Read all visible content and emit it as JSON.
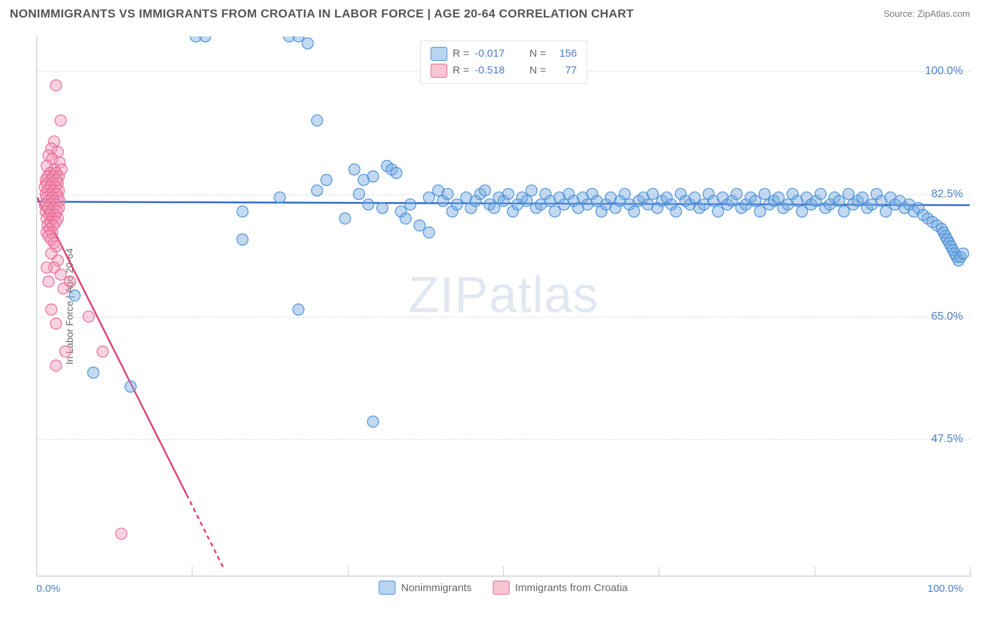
{
  "title": "NONIMMIGRANTS VS IMMIGRANTS FROM CROATIA IN LABOR FORCE | AGE 20-64 CORRELATION CHART",
  "source": "Source: ZipAtlas.com",
  "watermark": "ZIPatlas",
  "axes": {
    "y_title": "In Labor Force | Age 20-64",
    "x_min_label": "0.0%",
    "x_max_label": "100.0%",
    "xlim": [
      0,
      100
    ],
    "ylim": [
      28,
      105
    ],
    "y_ticks": [
      47.5,
      65.0,
      82.5,
      100.0
    ],
    "y_tick_labels": [
      "47.5%",
      "65.0%",
      "82.5%",
      "100.0%"
    ],
    "x_minor_ticks": [
      0,
      16.67,
      33.33,
      50,
      66.67,
      83.33,
      100
    ],
    "grid_color": "#dcdcdc",
    "axis_color": "#bfbfbf",
    "tick_label_color": "#4a7ec2",
    "tick_label_fontsize": 16
  },
  "legend_top": {
    "rows": [
      {
        "swatch_fill": "#b9d4f0",
        "swatch_stroke": "#4a90d9",
        "R_label": "R =",
        "R_value": "-0.017",
        "N_label": "N =",
        "N_value": "156"
      },
      {
        "swatch_fill": "#f7c4d2",
        "swatch_stroke": "#e86a96",
        "R_label": "R =",
        "R_value": "-0.518",
        "N_label": "N =",
        "N_value": "77"
      }
    ]
  },
  "legend_bottom": {
    "items": [
      {
        "swatch_fill": "#b9d4f0",
        "swatch_stroke": "#4a90d9",
        "label": "Nonimmigrants"
      },
      {
        "swatch_fill": "#f7c4d2",
        "swatch_stroke": "#e86a96",
        "label": "Immigants from Croatia"
      }
    ],
    "items_corrected": [
      {
        "swatch_fill": "#b9d4f0",
        "swatch_stroke": "#4a90d9",
        "label": "Nonimmigrants"
      },
      {
        "swatch_fill": "#f7c4d2",
        "swatch_stroke": "#e86a96",
        "label": "Immigrants from Croatia"
      }
    ]
  },
  "chart": {
    "type": "scatter",
    "background_color": "#ffffff",
    "series": [
      {
        "name": "Nonimmigrants",
        "marker_fill": "rgba(120,170,225,0.45)",
        "marker_stroke": "#4a90d9",
        "marker_r": 8,
        "trend": {
          "color": "#2f68c4",
          "width": 2.5,
          "y1": 81.4,
          "y2": 80.9,
          "x1": 0,
          "x2": 100,
          "dash_after_x": null
        },
        "points": [
          [
            17,
            105
          ],
          [
            18,
            105
          ],
          [
            27,
            105
          ],
          [
            28,
            105
          ],
          [
            29,
            104
          ],
          [
            30,
            93
          ],
          [
            4,
            68
          ],
          [
            10,
            55
          ],
          [
            6,
            57
          ],
          [
            22,
            76
          ],
          [
            28,
            66
          ],
          [
            36,
            50
          ],
          [
            42,
            82
          ],
          [
            22,
            80
          ],
          [
            26,
            82
          ],
          [
            30,
            83
          ],
          [
            31,
            84.5
          ],
          [
            33,
            79
          ],
          [
            34,
            86
          ],
          [
            34.5,
            82.5
          ],
          [
            35,
            84.5
          ],
          [
            35.5,
            81
          ],
          [
            36,
            85
          ],
          [
            37,
            80.5
          ],
          [
            37.5,
            86.5
          ],
          [
            38,
            86
          ],
          [
            38.5,
            85.5
          ],
          [
            39,
            80
          ],
          [
            39.5,
            79
          ],
          [
            40,
            81
          ],
          [
            41,
            78
          ],
          [
            42,
            77
          ],
          [
            43,
            83
          ],
          [
            43.5,
            81.5
          ],
          [
            44,
            82.5
          ],
          [
            44.5,
            80
          ],
          [
            45,
            81
          ],
          [
            46,
            82
          ],
          [
            46.5,
            80.5
          ],
          [
            47,
            81.5
          ],
          [
            47.5,
            82.5
          ],
          [
            48,
            83
          ],
          [
            48.5,
            81
          ],
          [
            49,
            80.5
          ],
          [
            49.5,
            82
          ],
          [
            50,
            81.5
          ],
          [
            50.5,
            82.5
          ],
          [
            51,
            80
          ],
          [
            51.5,
            81
          ],
          [
            52,
            82
          ],
          [
            52.5,
            81.5
          ],
          [
            53,
            83
          ],
          [
            53.5,
            80.5
          ],
          [
            54,
            81
          ],
          [
            54.5,
            82.5
          ],
          [
            55,
            81.5
          ],
          [
            55.5,
            80
          ],
          [
            56,
            82
          ],
          [
            56.5,
            81
          ],
          [
            57,
            82.5
          ],
          [
            57.5,
            81.5
          ],
          [
            58,
            80.5
          ],
          [
            58.5,
            82
          ],
          [
            59,
            81
          ],
          [
            59.5,
            82.5
          ],
          [
            60,
            81.5
          ],
          [
            60.5,
            80
          ],
          [
            61,
            81
          ],
          [
            61.5,
            82
          ],
          [
            62,
            80.5
          ],
          [
            62.5,
            81.5
          ],
          [
            63,
            82.5
          ],
          [
            63.5,
            81
          ],
          [
            64,
            80
          ],
          [
            64.5,
            81.5
          ],
          [
            65,
            82
          ],
          [
            65.5,
            81
          ],
          [
            66,
            82.5
          ],
          [
            66.5,
            80.5
          ],
          [
            67,
            81.5
          ],
          [
            67.5,
            82
          ],
          [
            68,
            81
          ],
          [
            68.5,
            80
          ],
          [
            69,
            82.5
          ],
          [
            69.5,
            81.5
          ],
          [
            70,
            81
          ],
          [
            70.5,
            82
          ],
          [
            71,
            80.5
          ],
          [
            71.5,
            81
          ],
          [
            72,
            82.5
          ],
          [
            72.5,
            81.5
          ],
          [
            73,
            80
          ],
          [
            73.5,
            82
          ],
          [
            74,
            81
          ],
          [
            74.5,
            81.5
          ],
          [
            75,
            82.5
          ],
          [
            75.5,
            80.5
          ],
          [
            76,
            81
          ],
          [
            76.5,
            82
          ],
          [
            77,
            81.5
          ],
          [
            77.5,
            80
          ],
          [
            78,
            82.5
          ],
          [
            78.5,
            81
          ],
          [
            79,
            81.5
          ],
          [
            79.5,
            82
          ],
          [
            80,
            80.5
          ],
          [
            80.5,
            81
          ],
          [
            81,
            82.5
          ],
          [
            81.5,
            81.5
          ],
          [
            82,
            80
          ],
          [
            82.5,
            82
          ],
          [
            83,
            81
          ],
          [
            83.5,
            81.5
          ],
          [
            84,
            82.5
          ],
          [
            84.5,
            80.5
          ],
          [
            85,
            81
          ],
          [
            85.5,
            82
          ],
          [
            86,
            81.5
          ],
          [
            86.5,
            80
          ],
          [
            87,
            82.5
          ],
          [
            87.5,
            81
          ],
          [
            88,
            81.5
          ],
          [
            88.5,
            82
          ],
          [
            89,
            80.5
          ],
          [
            89.5,
            81
          ],
          [
            90,
            82.5
          ],
          [
            90.5,
            81.5
          ],
          [
            91,
            80
          ],
          [
            91.5,
            82
          ],
          [
            92,
            81
          ],
          [
            92.5,
            81.5
          ],
          [
            93,
            80.5
          ],
          [
            93.5,
            81
          ],
          [
            94,
            80
          ],
          [
            94.5,
            80.5
          ],
          [
            95,
            79.5
          ],
          [
            95.5,
            79
          ],
          [
            96,
            78.5
          ],
          [
            96.5,
            78
          ],
          [
            97,
            77.5
          ],
          [
            97.2,
            77
          ],
          [
            97.4,
            76.5
          ],
          [
            97.6,
            76
          ],
          [
            97.8,
            75.5
          ],
          [
            98,
            75
          ],
          [
            98.2,
            74.5
          ],
          [
            98.4,
            74
          ],
          [
            98.6,
            73.5
          ],
          [
            98.8,
            73
          ],
          [
            99,
            73.5
          ],
          [
            99.3,
            74
          ]
        ]
      },
      {
        "name": "Immigrants from Croatia",
        "marker_fill": "rgba(240,150,180,0.42)",
        "marker_stroke": "#e86a96",
        "marker_r": 8,
        "trend": {
          "color": "#e04076",
          "width": 2.5,
          "y1": 82,
          "y2": 29,
          "x1": 0,
          "x2": 20,
          "dash_after_x": 16
        },
        "points": [
          [
            2,
            98
          ],
          [
            2.5,
            93
          ],
          [
            1.8,
            90
          ],
          [
            1.5,
            89
          ],
          [
            2.2,
            88.5
          ],
          [
            1.2,
            88
          ],
          [
            1.6,
            87.5
          ],
          [
            2.4,
            87
          ],
          [
            1.0,
            86.5
          ],
          [
            1.8,
            86
          ],
          [
            2.6,
            86
          ],
          [
            1.4,
            85.5
          ],
          [
            2.0,
            85.5
          ],
          [
            1.1,
            85
          ],
          [
            1.7,
            85
          ],
          [
            2.3,
            85
          ],
          [
            0.9,
            84.5
          ],
          [
            1.5,
            84.5
          ],
          [
            2.1,
            84.5
          ],
          [
            1.0,
            84
          ],
          [
            1.6,
            84
          ],
          [
            2.2,
            84
          ],
          [
            0.8,
            83.5
          ],
          [
            1.4,
            83.5
          ],
          [
            2.0,
            83.5
          ],
          [
            1.1,
            83
          ],
          [
            1.7,
            83
          ],
          [
            2.3,
            83
          ],
          [
            0.9,
            82.5
          ],
          [
            1.5,
            82.5
          ],
          [
            2.1,
            82.5
          ],
          [
            1.0,
            82
          ],
          [
            1.6,
            82
          ],
          [
            2.2,
            82
          ],
          [
            1.2,
            81.5
          ],
          [
            1.8,
            81.5
          ],
          [
            2.4,
            81.5
          ],
          [
            0.8,
            81
          ],
          [
            1.4,
            81
          ],
          [
            2.0,
            81
          ],
          [
            1.1,
            80.5
          ],
          [
            1.7,
            80.5
          ],
          [
            2.3,
            80.5
          ],
          [
            0.9,
            80
          ],
          [
            1.5,
            80
          ],
          [
            2.1,
            80
          ],
          [
            1.3,
            79.5
          ],
          [
            1.9,
            79.5
          ],
          [
            1.0,
            79
          ],
          [
            1.6,
            79
          ],
          [
            2.2,
            79
          ],
          [
            1.4,
            78.5
          ],
          [
            2.0,
            78.5
          ],
          [
            1.1,
            78
          ],
          [
            1.7,
            78
          ],
          [
            1.3,
            77.5
          ],
          [
            1.0,
            77
          ],
          [
            1.6,
            77
          ],
          [
            1.2,
            76.5
          ],
          [
            1.5,
            76
          ],
          [
            1.8,
            75.5
          ],
          [
            2.0,
            75
          ],
          [
            1.5,
            74
          ],
          [
            2.2,
            73
          ],
          [
            1.8,
            72
          ],
          [
            1.0,
            72
          ],
          [
            2.5,
            71
          ],
          [
            1.2,
            70
          ],
          [
            3.5,
            70
          ],
          [
            2.8,
            69
          ],
          [
            1.5,
            66
          ],
          [
            2.0,
            64
          ],
          [
            5.5,
            65
          ],
          [
            3.0,
            60
          ],
          [
            2.0,
            58
          ],
          [
            7.0,
            60
          ],
          [
            9.0,
            34
          ]
        ]
      }
    ]
  }
}
